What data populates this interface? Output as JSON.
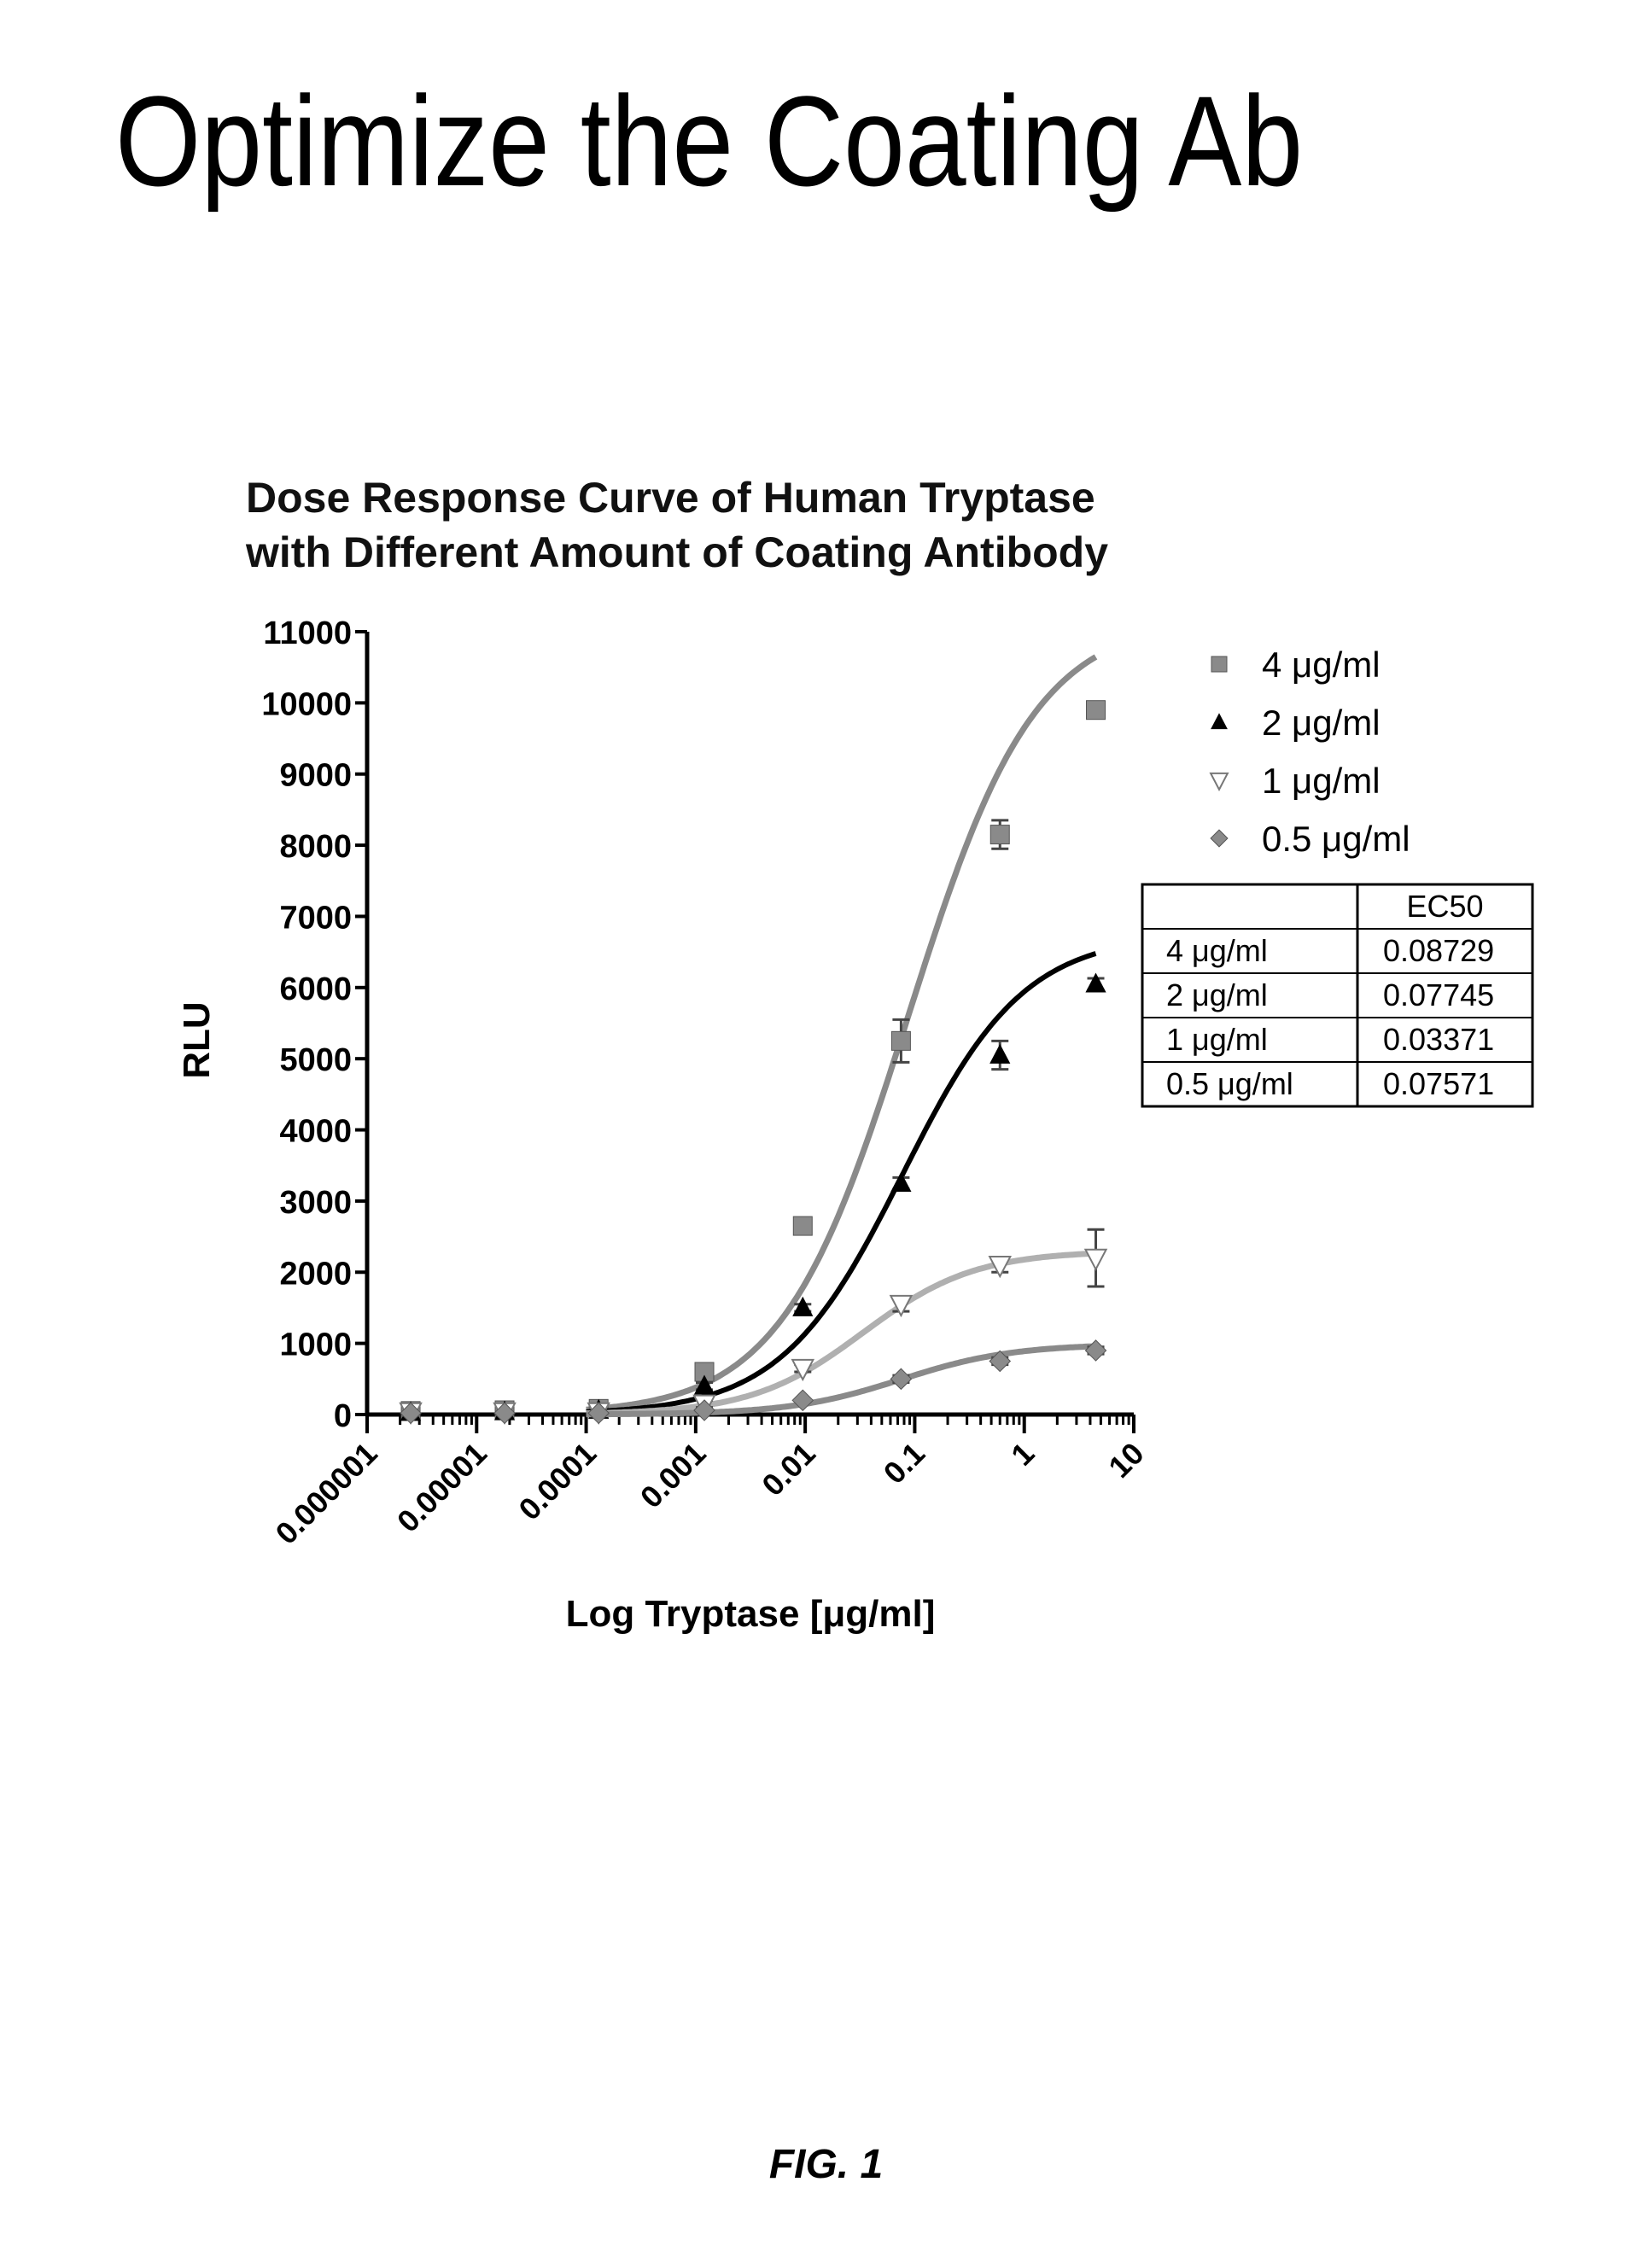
{
  "page": {
    "title": "Optimize the Coating Ab",
    "caption": "FIG. 1"
  },
  "chart_data": {
    "type": "scatter",
    "title": "Dose Response Curve of Human Tryptase with Different Amount of Coating Antibody",
    "title_lines": [
      "Dose Response Curve of Human Tryptase",
      "with Different Amount of Coating Antibody"
    ],
    "xlabel": "Log Tryptase [μg/ml]",
    "ylabel": "RLU",
    "x_scale": "log",
    "xlim": [
      1e-06,
      10
    ],
    "ylim": [
      0,
      11000
    ],
    "x_ticks": [
      1e-06,
      1e-05,
      0.0001,
      0.001,
      0.01,
      0.1,
      1,
      10
    ],
    "x_tick_labels": [
      "0.000001",
      "0.00001",
      "0.0001",
      "0.001",
      "0.01",
      "0.1",
      "1",
      "10"
    ],
    "y_ticks": [
      0,
      1000,
      2000,
      3000,
      4000,
      5000,
      6000,
      7000,
      8000,
      9000,
      10000,
      11000
    ],
    "y_tick_labels": [
      "0",
      "1000",
      "2000",
      "3000",
      "4000",
      "5000",
      "6000",
      "7000",
      "8000",
      "9000",
      "10000",
      "11000"
    ],
    "grid": false,
    "legend_position": "top-right",
    "series": [
      {
        "name": "4 μg/ml",
        "marker": "square",
        "color": "#8a8a8a",
        "x": [
          2.5e-06,
          1.8e-05,
          0.00013,
          0.0012,
          0.0095,
          0.075,
          0.6,
          4.5
        ],
        "y": [
          50,
          60,
          80,
          600,
          2650,
          5250,
          8150,
          9900
        ],
        "error": [
          0,
          0,
          0,
          100,
          100,
          300,
          200,
          100
        ],
        "fit": {
          "bottom": 0,
          "top": 11200,
          "ec50": 0.08729,
          "hill": 0.75
        }
      },
      {
        "name": "2 μg/ml",
        "marker": "triangle-up",
        "color": "#000000",
        "x": [
          2.5e-06,
          1.8e-05,
          0.00013,
          0.0012,
          0.0095,
          0.075,
          0.6,
          4.5
        ],
        "y": [
          30,
          40,
          60,
          400,
          1500,
          3250,
          5050,
          6050
        ],
        "error": [
          0,
          0,
          0,
          50,
          50,
          80,
          200,
          80
        ],
        "fit": {
          "bottom": 0,
          "top": 6750,
          "ec50": 0.07745,
          "hill": 0.78
        }
      },
      {
        "name": "1 μg/ml",
        "marker": "triangle-down",
        "color": "#b0b0b0",
        "x": [
          2.5e-06,
          1.8e-05,
          0.00013,
          0.0012,
          0.0095,
          0.075,
          0.6,
          4.5
        ],
        "y": [
          40,
          40,
          40,
          150,
          650,
          1550,
          2100,
          2200
        ],
        "error": [
          0,
          0,
          0,
          50,
          50,
          100,
          100,
          400
        ],
        "fit": {
          "bottom": 0,
          "top": 2300,
          "ec50": 0.03371,
          "hill": 0.85
        }
      },
      {
        "name": "0.5 μg/ml",
        "marker": "diamond",
        "color": "#8a8a8a",
        "x": [
          2.5e-06,
          1.8e-05,
          0.00013,
          0.0012,
          0.0095,
          0.075,
          0.6,
          4.5
        ],
        "y": [
          20,
          20,
          20,
          60,
          200,
          500,
          750,
          900
        ],
        "error": [
          0,
          0,
          0,
          0,
          0,
          50,
          50,
          50
        ],
        "fit": {
          "bottom": 0,
          "top": 990,
          "ec50": 0.07571,
          "hill": 0.85
        }
      }
    ],
    "ec50_table": {
      "header": [
        "",
        "EC50"
      ],
      "rows": [
        [
          "4 μg/ml",
          "0.08729"
        ],
        [
          "2 μg/ml",
          "0.07745"
        ],
        [
          "1 μg/ml",
          "0.03371"
        ],
        [
          "0.5 μg/ml",
          "0.07571"
        ]
      ]
    }
  }
}
